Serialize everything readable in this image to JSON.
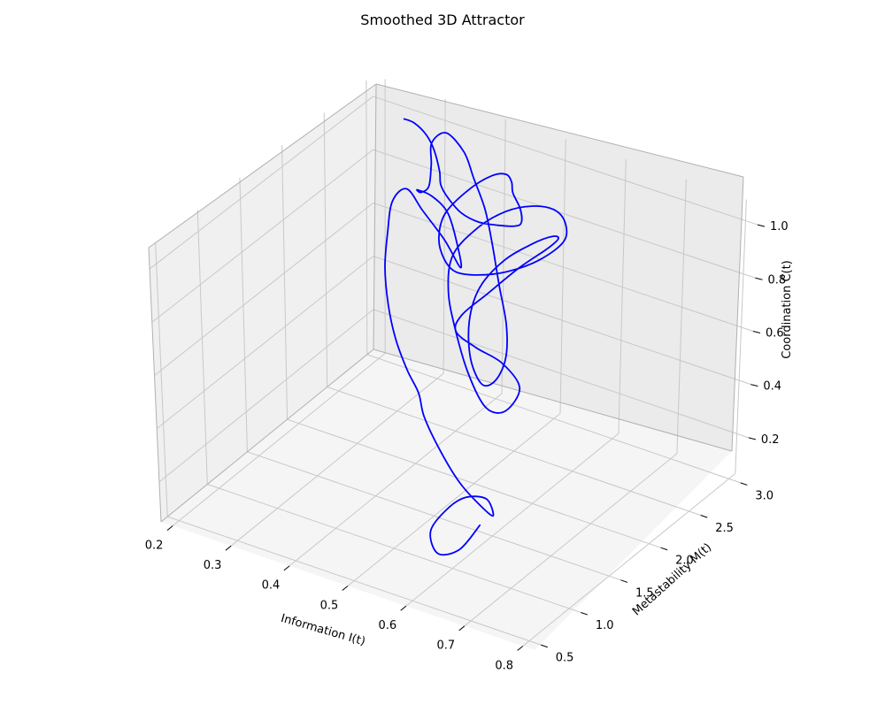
{
  "chart_data": {
    "type": "line",
    "projection": "3d",
    "title": "Smoothed 3D Attractor",
    "xlabel": "Information I(t)",
    "ylabel": "Metastability M(t)",
    "zlabel": "Coordination C(t)",
    "xlim": [
      0.18,
      0.82
    ],
    "ylim": [
      0.42,
      3.08
    ],
    "zlim": [
      0.05,
      1.08
    ],
    "xticks": [
      "0.2",
      "0.3",
      "0.4",
      "0.5",
      "0.6",
      "0.7",
      "0.8"
    ],
    "yticks": [
      "0.5",
      "1.0",
      "1.5",
      "2.0",
      "2.5",
      "3.0"
    ],
    "zticks": [
      "0.2",
      "0.4",
      "0.6",
      "0.8",
      "1.0"
    ],
    "grid": true,
    "line_color": "#0000ff",
    "pane_colors": {
      "left": "#f0f0f0",
      "back": "#ebebeb",
      "floor": "#f5f5f5"
    },
    "series": [
      {
        "x": [
          0.668,
          0.64,
          0.6,
          0.57,
          0.585,
          0.61,
          0.645,
          0.67,
          0.655,
          0.62,
          0.58,
          0.54,
          0.51,
          0.47,
          0.43,
          0.39,
          0.35,
          0.32,
          0.3,
          0.31,
          0.33,
          0.36,
          0.38,
          0.36,
          0.33,
          0.31,
          0.3,
          0.32,
          0.34,
          0.33,
          0.31,
          0.32,
          0.35,
          0.38,
          0.42,
          0.46,
          0.5,
          0.54,
          0.56,
          0.55,
          0.52,
          0.48,
          0.45,
          0.44,
          0.46,
          0.5,
          0.54,
          0.57,
          0.58,
          0.56,
          0.53,
          0.5,
          0.49,
          0.51,
          0.54,
          0.57,
          0.56,
          0.52,
          0.47,
          0.42,
          0.38,
          0.36,
          0.38,
          0.42,
          0.47,
          0.52,
          0.56,
          0.58,
          0.56,
          0.52,
          0.47,
          0.42,
          0.38,
          0.35,
          0.34,
          0.36,
          0.39,
          0.42,
          0.45,
          0.48,
          0.52,
          0.55,
          0.56,
          0.54,
          0.5,
          0.45,
          0.4,
          0.36,
          0.33,
          0.3,
          0.28,
          0.26,
          0.25
        ],
        "y": [
          0.85,
          0.8,
          0.82,
          0.95,
          1.05,
          1.1,
          1.1,
          1.0,
          0.95,
          0.95,
          1.0,
          1.1,
          1.25,
          1.4,
          1.55,
          1.75,
          2.0,
          2.25,
          2.45,
          2.55,
          2.6,
          2.65,
          2.7,
          2.8,
          2.9,
          2.85,
          2.75,
          2.65,
          2.6,
          2.7,
          2.85,
          2.95,
          2.95,
          2.85,
          2.7,
          2.5,
          2.3,
          2.1,
          1.95,
          1.9,
          1.95,
          2.1,
          2.3,
          2.5,
          2.65,
          2.7,
          2.65,
          2.5,
          2.3,
          2.1,
          1.95,
          1.85,
          1.85,
          1.95,
          2.05,
          2.05,
          1.95,
          2.0,
          2.15,
          2.35,
          2.55,
          2.75,
          2.9,
          2.95,
          2.9,
          2.8,
          2.65,
          2.5,
          2.35,
          2.25,
          2.25,
          2.35,
          2.5,
          2.65,
          2.8,
          2.95,
          3.0,
          2.95,
          2.8,
          2.6,
          2.4,
          2.2,
          2.05,
          2.0,
          2.05,
          2.2,
          2.4,
          2.6,
          2.8,
          2.95,
          3.0,
          3.0,
          2.95
        ],
        "z": [
          0.3,
          0.2,
          0.15,
          0.18,
          0.25,
          0.3,
          0.32,
          0.3,
          0.34,
          0.4,
          0.48,
          0.55,
          0.58,
          0.6,
          0.65,
          0.7,
          0.75,
          0.8,
          0.85,
          0.88,
          0.8,
          0.7,
          0.6,
          0.65,
          0.72,
          0.78,
          0.82,
          0.85,
          0.9,
          0.95,
          0.98,
          1.0,
          0.95,
          0.9,
          0.85,
          0.8,
          0.72,
          0.65,
          0.58,
          0.5,
          0.45,
          0.48,
          0.55,
          0.62,
          0.7,
          0.78,
          0.85,
          0.9,
          0.92,
          0.88,
          0.8,
          0.72,
          0.65,
          0.58,
          0.52,
          0.45,
          0.38,
          0.35,
          0.4,
          0.48,
          0.55,
          0.62,
          0.7,
          0.78,
          0.85,
          0.9,
          0.92,
          0.9,
          0.85,
          0.8,
          0.75,
          0.7,
          0.68,
          0.7,
          0.75,
          0.82,
          0.88,
          0.92,
          0.95,
          0.98,
          1.0,
          1.02,
          1.05,
          1.05,
          1.02,
          0.98,
          0.95,
          0.92,
          0.9,
          0.92,
          0.95,
          0.98,
          1.0
        ]
      }
    ]
  }
}
